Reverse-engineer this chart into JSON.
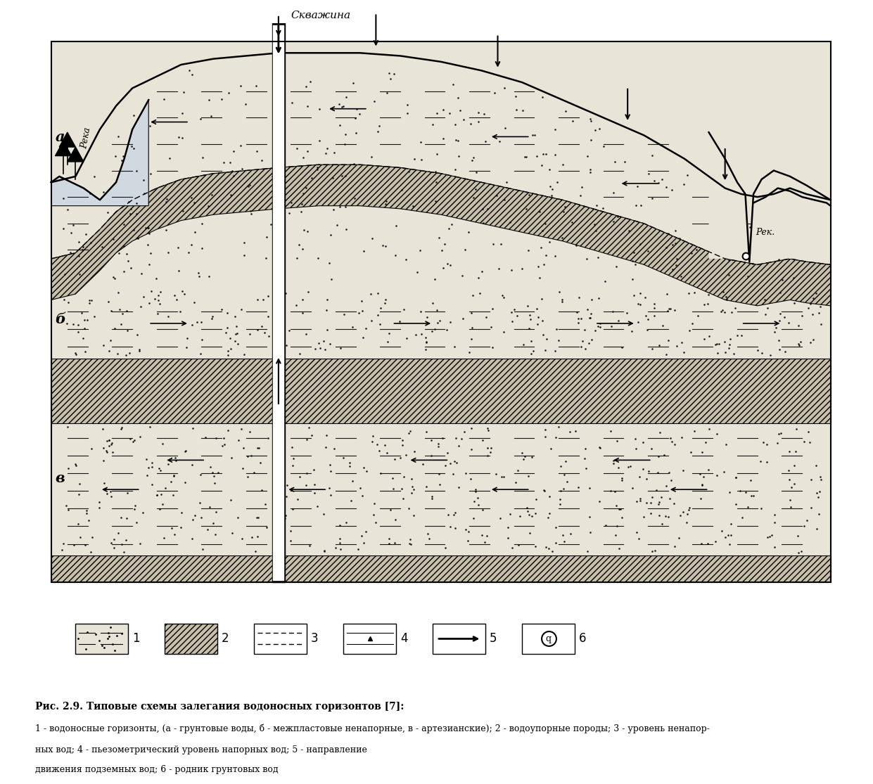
{
  "title": "Рис. 2.9. Типовые схемы залегания водоносных горизонтов [7]:",
  "cap1": "1 - водоносные горизонты, (а - грунтовые воды, б - межпластовые ненапорные, в - артезианские); 2 - водоупорные породы; 3 - уровень ненапор-",
  "cap2": "ных вод; 4 - пьезометрический уровень напорных вод; 5 - направление",
  "cap3": "движения подземных вод; 6 - родник грунтовых вод",
  "bg_color": "#ffffff",
  "sand_color": "#e8e4d8",
  "hatch_color": "#c8c0aa",
  "label_a": "а",
  "label_b": "б",
  "label_v": "в",
  "label_skv": "Скважина",
  "label_reka_left": "Река",
  "label_reka_right": "Рек."
}
